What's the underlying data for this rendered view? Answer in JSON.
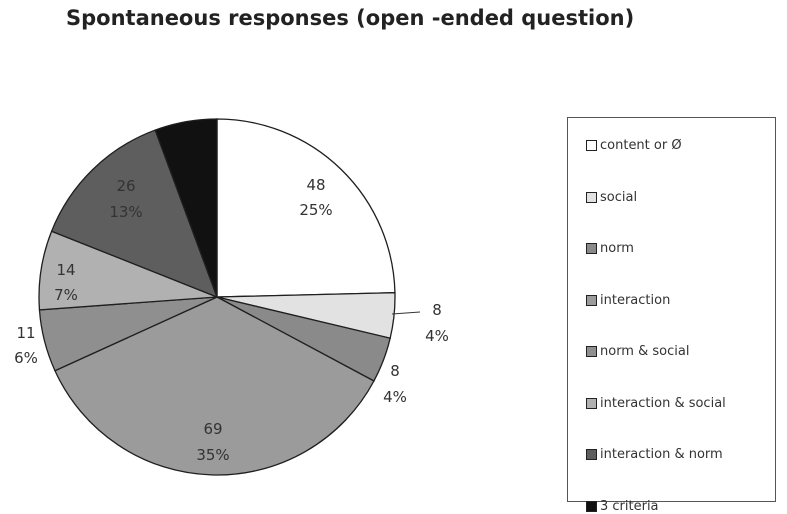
{
  "chart_data": {
    "type": "pie",
    "title": "Spontaneous responses (open -ended question)",
    "legend_position": "right",
    "slices": [
      {
        "label": "content or Ø",
        "count": "48",
        "percent": "25%",
        "value": 48,
        "color": "#ffffff"
      },
      {
        "label": "social",
        "count": "8",
        "percent": "4%",
        "value": 8,
        "color": "#e2e2e2"
      },
      {
        "label": "norm",
        "count": "8",
        "percent": "4%",
        "value": 8,
        "color": "#8a8a8a"
      },
      {
        "label": "interaction",
        "count": "69",
        "percent": "35%",
        "value": 69,
        "color": "#9b9b9b"
      },
      {
        "label": "norm & social",
        "count": "11",
        "percent": "6%",
        "value": 11,
        "color": "#8f8f8f"
      },
      {
        "label": "interaction & social",
        "count": "14",
        "percent": "7%",
        "value": 14,
        "color": "#b1b1b1"
      },
      {
        "label": "interaction & norm",
        "count": "26",
        "percent": "13%",
        "value": 26,
        "color": "#5e5e5e"
      },
      {
        "label": "3 criteria",
        "count": "",
        "percent": "",
        "value": 11,
        "color": "#111111"
      }
    ]
  }
}
